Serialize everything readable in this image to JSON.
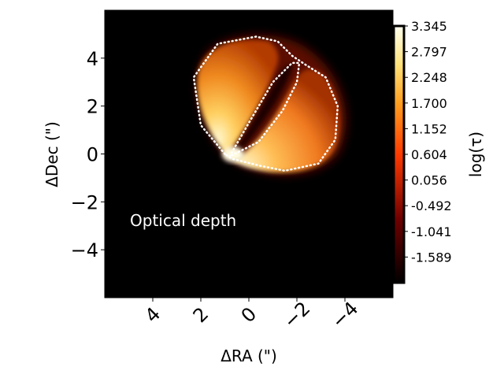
{
  "chart_data": {
    "type": "heatmap",
    "title": "",
    "annotation": "Optical depth",
    "xlabel": "ΔRA (\")",
    "ylabel": "ΔDec (\")",
    "xlim": [
      6,
      -6
    ],
    "ylim": [
      -6,
      6
    ],
    "x_ticks": [
      {
        "value": 4,
        "label": "4"
      },
      {
        "value": 2,
        "label": "2"
      },
      {
        "value": 0,
        "label": "0"
      },
      {
        "value": -2,
        "label": "−2"
      },
      {
        "value": -4,
        "label": "−4"
      }
    ],
    "y_ticks": [
      {
        "value": 4,
        "label": "4"
      },
      {
        "value": 2,
        "label": "2"
      },
      {
        "value": 0,
        "label": "0"
      },
      {
        "value": -2,
        "label": "−2"
      },
      {
        "value": -4,
        "label": "−4"
      }
    ],
    "colorbar": {
      "label": "log(τ)",
      "colormap": "afmhot",
      "range": [
        -2.137,
        3.345
      ],
      "ticks": [
        "3.345",
        "2.797",
        "2.248",
        "1.700",
        "1.152",
        "0.604",
        "0.056",
        "-0.492",
        "-1.041",
        "-1.589"
      ],
      "tick_values": [
        3.345,
        2.797,
        2.248,
        1.7,
        1.152,
        0.604,
        0.056,
        -0.492,
        -1.041,
        -1.589
      ]
    },
    "outlines": {
      "style": "white dotted",
      "outer_lobe": [
        [
          1.0,
          0.0
        ],
        [
          2.0,
          1.2
        ],
        [
          2.3,
          3.2
        ],
        [
          1.3,
          4.6
        ],
        [
          -0.3,
          4.9
        ],
        [
          -1.2,
          4.7
        ],
        [
          -1.8,
          4.1
        ],
        [
          -2.4,
          3.7
        ],
        [
          -3.2,
          3.2
        ],
        [
          -3.7,
          2.0
        ],
        [
          -3.6,
          0.6
        ],
        [
          -2.9,
          -0.4
        ],
        [
          -1.5,
          -0.7
        ],
        [
          -0.5,
          -0.5
        ],
        [
          0.7,
          -0.2
        ],
        [
          1.0,
          0.0
        ]
      ],
      "inner_lobe": [
        [
          0.8,
          -0.1
        ],
        [
          0.0,
          1.3
        ],
        [
          -1.0,
          3.0
        ],
        [
          -1.8,
          3.8
        ],
        [
          -2.1,
          3.8
        ],
        [
          -2.0,
          3.0
        ],
        [
          -1.4,
          1.8
        ],
        [
          -0.4,
          0.5
        ],
        [
          0.8,
          -0.1
        ]
      ]
    },
    "grid": false,
    "background": "#000000"
  }
}
